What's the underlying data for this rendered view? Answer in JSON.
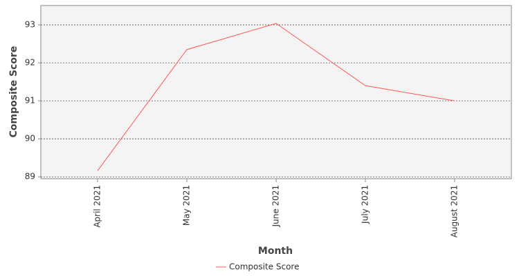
{
  "chart_data": {
    "type": "line",
    "x_label": "Month",
    "y_label": "Composite Score",
    "categories": [
      "April 2021",
      "May 2021",
      "June 2021",
      "July 2021",
      "August 2021"
    ],
    "series": [
      {
        "name": "Composite Score",
        "color": "#ff5555",
        "values": [
          89.16,
          92.35,
          93.04,
          91.4,
          91.0
        ]
      }
    ],
    "ylim": [
      88.95,
      93.51
    ],
    "yticks": [
      89,
      90,
      91,
      92,
      93
    ],
    "grid": true,
    "legend": "bottom"
  }
}
